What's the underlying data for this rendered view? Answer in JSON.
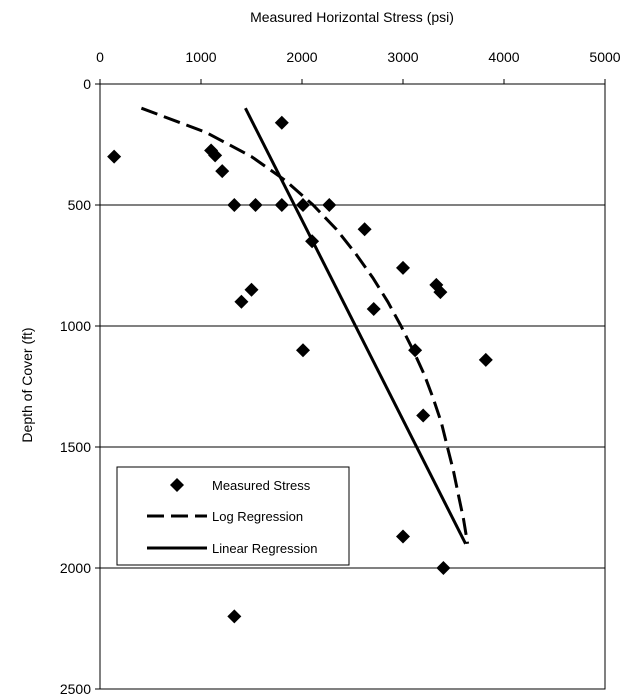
{
  "chart_data": {
    "type": "scatter",
    "title": "",
    "xlabel": "Measured Horizontal Stress (psi)",
    "ylabel": "Depth of Cover (ft)",
    "x_axis_position": "top",
    "y_axis_inverted": true,
    "xlim": [
      0,
      5000
    ],
    "ylim": [
      0,
      2500
    ],
    "x_ticks": [
      "0",
      "1000",
      "2000",
      "3000",
      "4000",
      "5000"
    ],
    "y_ticks": [
      "0",
      "500",
      "1000",
      "1500",
      "2000",
      "2500"
    ],
    "x_tick_values": [
      0,
      1000,
      2000,
      3000,
      4000,
      5000
    ],
    "y_tick_values": [
      0,
      500,
      1000,
      1500,
      2000,
      2500
    ],
    "grid": "horizontal",
    "legend_position": "bottom-left",
    "series": [
      {
        "name": "Measured Stress",
        "type": "scatter",
        "marker": "diamond",
        "points": [
          {
            "x": 140,
            "y": 300
          },
          {
            "x": 1100,
            "y": 275
          },
          {
            "x": 1140,
            "y": 295
          },
          {
            "x": 1210,
            "y": 360
          },
          {
            "x": 1800,
            "y": 160
          },
          {
            "x": 1330,
            "y": 500
          },
          {
            "x": 1540,
            "y": 500
          },
          {
            "x": 1800,
            "y": 500
          },
          {
            "x": 2010,
            "y": 500
          },
          {
            "x": 2270,
            "y": 500
          },
          {
            "x": 2100,
            "y": 650
          },
          {
            "x": 2620,
            "y": 600
          },
          {
            "x": 3000,
            "y": 760
          },
          {
            "x": 2710,
            "y": 930
          },
          {
            "x": 1400,
            "y": 900
          },
          {
            "x": 1500,
            "y": 850
          },
          {
            "x": 3330,
            "y": 830
          },
          {
            "x": 3370,
            "y": 860
          },
          {
            "x": 3120,
            "y": 1100
          },
          {
            "x": 2010,
            "y": 1100
          },
          {
            "x": 3820,
            "y": 1140
          },
          {
            "x": 3200,
            "y": 1370
          },
          {
            "x": 3000,
            "y": 1870
          },
          {
            "x": 3400,
            "y": 2000
          },
          {
            "x": 1330,
            "y": 2200
          }
        ]
      },
      {
        "name": "Log Regression",
        "type": "line",
        "dash": "long-dash",
        "points": [
          {
            "x": 410,
            "y": 100
          },
          {
            "x": 1050,
            "y": 200
          },
          {
            "x": 1500,
            "y": 300
          },
          {
            "x": 1840,
            "y": 400
          },
          {
            "x": 2110,
            "y": 500
          },
          {
            "x": 2340,
            "y": 600
          },
          {
            "x": 2530,
            "y": 700
          },
          {
            "x": 2700,
            "y": 800
          },
          {
            "x": 2850,
            "y": 900
          },
          {
            "x": 2980,
            "y": 1000
          },
          {
            "x": 3100,
            "y": 1100
          },
          {
            "x": 3210,
            "y": 1200
          },
          {
            "x": 3300,
            "y": 1300
          },
          {
            "x": 3380,
            "y": 1400
          },
          {
            "x": 3440,
            "y": 1500
          },
          {
            "x": 3500,
            "y": 1600
          },
          {
            "x": 3550,
            "y": 1700
          },
          {
            "x": 3600,
            "y": 1800
          },
          {
            "x": 3640,
            "y": 1900
          }
        ]
      },
      {
        "name": "Linear Regression",
        "type": "line",
        "dash": "solid",
        "points": [
          {
            "x": 1440,
            "y": 100
          },
          {
            "x": 3620,
            "y": 1900
          }
        ]
      }
    ]
  }
}
